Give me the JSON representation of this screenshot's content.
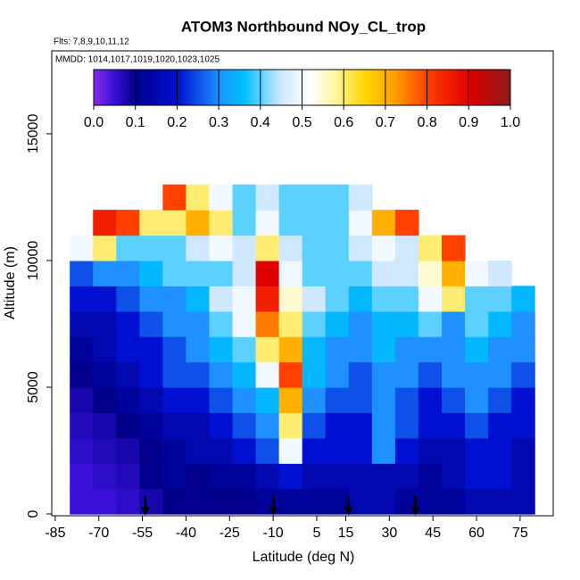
{
  "chart_data": {
    "type": "heatmap",
    "title": "ATOM3 Northbound NOy_CL_trop",
    "subtitle": "Flts: 7,8,9,10,11,12",
    "annotation": "MMDD: 1014,1017,1019,1020,1023,1025",
    "x_label": "Latitude (deg N)",
    "y_label": "Altitude (m)",
    "xlim": [
      -86.2,
      86.4
    ],
    "ylim": [
      -70,
      18270
    ],
    "xticks": [
      -85,
      -70,
      -55,
      -40,
      -25,
      -10,
      5,
      15,
      30,
      45,
      60,
      75
    ],
    "yticks": [
      0,
      5000,
      10000,
      15000
    ],
    "x": [
      -80,
      -72,
      -64,
      -56,
      -48,
      -40,
      -32,
      -24,
      -16,
      -8,
      0,
      8,
      16,
      24,
      32,
      40,
      48,
      56,
      64,
      72,
      80
    ],
    "y": [
      0,
      1000,
      2000,
      3000,
      4000,
      5000,
      6000,
      7000,
      8000,
      9000,
      10000,
      11000,
      12000,
      13000
    ],
    "values": [
      [
        0.05,
        0.05,
        0.06,
        0.08,
        0.1,
        0.1,
        0.1,
        0.1,
        0.12,
        0.12,
        0.12,
        0.12,
        0.15,
        0.15,
        0.12,
        0.12,
        0.12,
        0.15,
        0.15,
        0.15
      ],
      [
        0.05,
        0.06,
        0.07,
        0.1,
        0.12,
        0.1,
        0.12,
        0.12,
        0.15,
        0.2,
        0.15,
        0.15,
        0.15,
        0.15,
        0.15,
        0.12,
        0.15,
        0.2,
        0.2,
        0.15
      ],
      [
        0.06,
        0.07,
        0.08,
        0.1,
        0.12,
        0.15,
        0.15,
        0.2,
        0.25,
        0.5,
        0.2,
        0.2,
        0.2,
        0.3,
        0.2,
        0.15,
        0.15,
        0.2,
        0.2,
        0.15
      ],
      [
        0.07,
        0.08,
        0.1,
        0.12,
        0.15,
        0.15,
        0.2,
        0.25,
        0.3,
        0.6,
        0.25,
        0.2,
        0.2,
        0.3,
        0.25,
        0.2,
        0.2,
        0.25,
        0.2,
        0.2
      ],
      [
        0.08,
        0.1,
        0.12,
        0.15,
        0.2,
        0.2,
        0.25,
        0.3,
        0.35,
        0.7,
        0.3,
        0.25,
        0.25,
        0.3,
        0.25,
        0.2,
        0.25,
        0.3,
        0.25,
        0.2
      ],
      [
        0.1,
        0.12,
        0.15,
        0.2,
        0.25,
        0.25,
        0.3,
        0.35,
        0.5,
        0.8,
        0.35,
        0.3,
        0.25,
        0.3,
        0.3,
        0.25,
        0.3,
        0.3,
        0.3,
        0.25
      ],
      [
        0.12,
        0.15,
        0.2,
        0.2,
        0.25,
        0.3,
        0.35,
        0.4,
        0.6,
        0.7,
        0.35,
        0.3,
        0.3,
        0.35,
        0.3,
        0.3,
        0.3,
        0.35,
        0.3,
        0.3
      ],
      [
        0.15,
        0.15,
        0.2,
        0.25,
        0.3,
        0.3,
        0.4,
        0.5,
        0.75,
        0.6,
        0.4,
        0.35,
        0.3,
        0.35,
        0.35,
        0.4,
        0.3,
        0.4,
        0.35,
        0.3
      ],
      [
        0.2,
        0.2,
        0.25,
        0.3,
        0.3,
        0.35,
        0.45,
        0.5,
        0.85,
        0.55,
        0.45,
        0.4,
        0.35,
        0.4,
        0.4,
        0.5,
        0.6,
        0.4,
        0.4,
        0.35
      ],
      [
        0.25,
        0.3,
        0.3,
        0.35,
        0.4,
        0.4,
        0.4,
        0.45,
        0.9,
        0.5,
        0.4,
        0.4,
        0.4,
        0.45,
        0.45,
        0.55,
        0.7,
        0.5,
        0.45,
        null
      ],
      [
        0.5,
        0.6,
        0.4,
        0.4,
        0.4,
        0.45,
        0.5,
        0.45,
        0.6,
        0.45,
        0.4,
        0.4,
        0.45,
        0.5,
        0.45,
        0.6,
        0.8,
        null,
        null,
        null
      ],
      [
        null,
        0.85,
        0.8,
        0.6,
        0.6,
        0.7,
        0.6,
        0.4,
        0.5,
        0.4,
        0.4,
        0.4,
        0.5,
        0.7,
        0.8,
        null,
        null,
        null,
        null,
        null
      ],
      [
        null,
        null,
        null,
        null,
        0.8,
        0.6,
        0.5,
        0.4,
        0.45,
        0.4,
        0.4,
        0.4,
        0.45,
        null,
        null,
        null,
        null,
        null,
        null,
        null
      ]
    ],
    "arrows": [
      -54,
      -10,
      16,
      39
    ],
    "colorbar": {
      "lim": [
        0,
        1
      ],
      "ticks": [
        {
          "value": 0,
          "label": "0.0"
        },
        0.1,
        0.2,
        0.3,
        0.4,
        0.5,
        0.6,
        0.7,
        0.8,
        0.9,
        {
          "value": 1,
          "label": "1.0"
        }
      ],
      "colorscale": [
        [
          0,
          "#8a2be2"
        ],
        [
          0.05,
          "#3a10d8"
        ],
        [
          0.1,
          "#00008b"
        ],
        [
          0.2,
          "#0010d0"
        ],
        [
          0.3,
          "#1e90ff"
        ],
        [
          0.36,
          "#00bfff"
        ],
        [
          0.45,
          "#cfe8ff"
        ],
        [
          0.52,
          "#ffffff"
        ],
        [
          0.58,
          "#fff5a0"
        ],
        [
          0.65,
          "#ffd700"
        ],
        [
          0.72,
          "#ffa000"
        ],
        [
          0.8,
          "#ff4000"
        ],
        [
          0.9,
          "#e00000"
        ],
        [
          1,
          "#8b1a1a"
        ]
      ]
    }
  }
}
